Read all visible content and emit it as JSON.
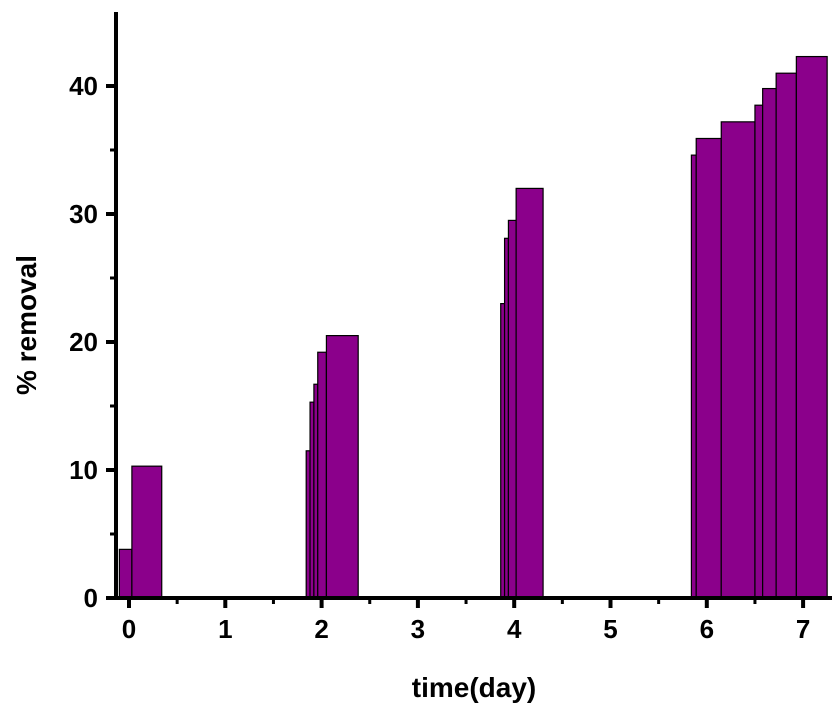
{
  "chart_data": {
    "type": "bar",
    "title": "",
    "xlabel": "time(day)",
    "ylabel": "% removal",
    "xlim": [
      -0.1,
      7.25
    ],
    "ylim": [
      0,
      45
    ],
    "xticks": [
      0,
      1,
      2,
      3,
      4,
      5,
      6,
      7
    ],
    "yticks": [
      0,
      10,
      20,
      30,
      40
    ],
    "grid": false,
    "legend": "none",
    "bar_color": "#8b008b",
    "bars": [
      {
        "x_start": -0.1,
        "x_end": 0.03,
        "value": 3.8
      },
      {
        "x_start": 0.03,
        "x_end": 0.34,
        "value": 10.3
      },
      {
        "x_start": 1.84,
        "x_end": 1.88,
        "value": 11.5
      },
      {
        "x_start": 1.88,
        "x_end": 1.92,
        "value": 15.3
      },
      {
        "x_start": 1.92,
        "x_end": 1.96,
        "value": 16.7
      },
      {
        "x_start": 1.96,
        "x_end": 2.05,
        "value": 19.2
      },
      {
        "x_start": 2.05,
        "x_end": 2.38,
        "value": 20.5
      },
      {
        "x_start": 3.86,
        "x_end": 3.9,
        "value": 23.0
      },
      {
        "x_start": 3.9,
        "x_end": 3.94,
        "value": 28.1
      },
      {
        "x_start": 3.94,
        "x_end": 4.02,
        "value": 29.5
      },
      {
        "x_start": 4.02,
        "x_end": 4.3,
        "value": 32.0
      },
      {
        "x_start": 5.84,
        "x_end": 5.89,
        "value": 34.6
      },
      {
        "x_start": 5.89,
        "x_end": 6.15,
        "value": 35.9
      },
      {
        "x_start": 6.15,
        "x_end": 6.5,
        "value": 37.2
      },
      {
        "x_start": 6.5,
        "x_end": 6.58,
        "value": 38.5
      },
      {
        "x_start": 6.58,
        "x_end": 6.72,
        "value": 39.8
      },
      {
        "x_start": 6.72,
        "x_end": 6.93,
        "value": 41.0
      },
      {
        "x_start": 6.93,
        "x_end": 7.25,
        "value": 42.3
      }
    ]
  }
}
